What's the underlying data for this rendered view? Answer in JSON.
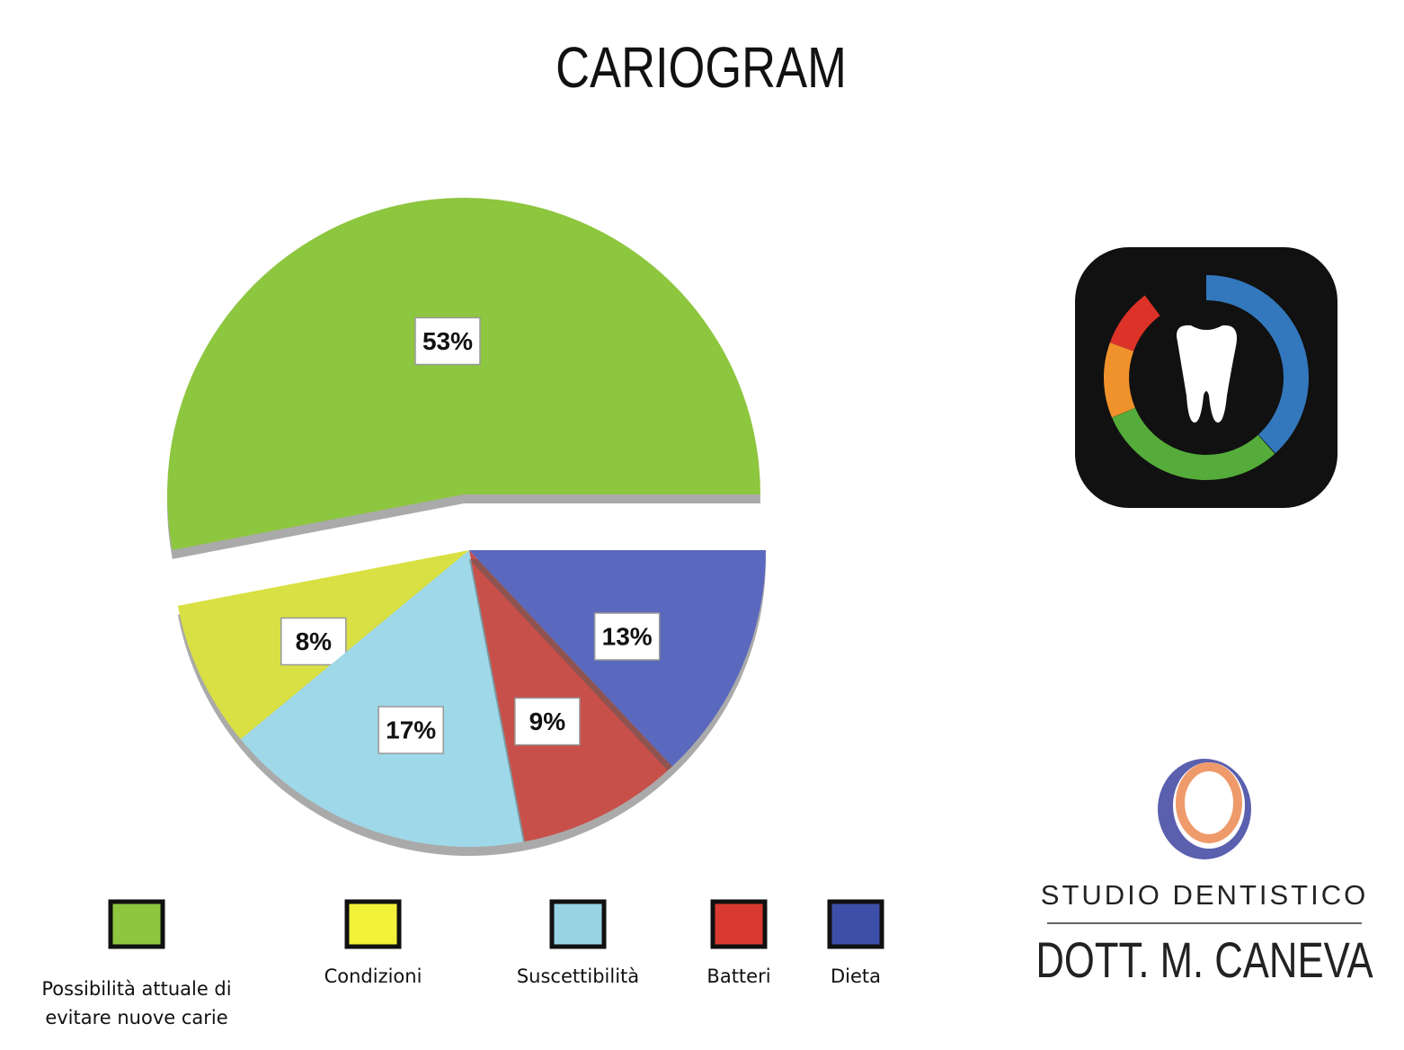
{
  "chart_data": {
    "type": "pie",
    "title": "CARIOGRAM",
    "categories": [
      "Possibilità attuale di evitare nuove carie",
      "Condizioni",
      "Suscettibilità",
      "Batteri",
      "Dieta"
    ],
    "values": [
      53,
      8,
      17,
      9,
      13
    ],
    "value_labels": [
      "53%",
      "8%",
      "17%",
      "9%",
      "13%"
    ],
    "colors": [
      "#8dc63f",
      "#d9e043",
      "#9fd8e8",
      "#c8504a",
      "#5a68bd"
    ],
    "legend_colors": [
      "#8dc63f",
      "#f2f23a",
      "#96d4e4",
      "#d93a2f",
      "#3d4fa8"
    ],
    "exploded": [
      true,
      false,
      false,
      false,
      false
    ]
  },
  "logo": {
    "line1": "STUDIO DENTISTICO",
    "line2": "DOTT. M. CANEVA"
  }
}
